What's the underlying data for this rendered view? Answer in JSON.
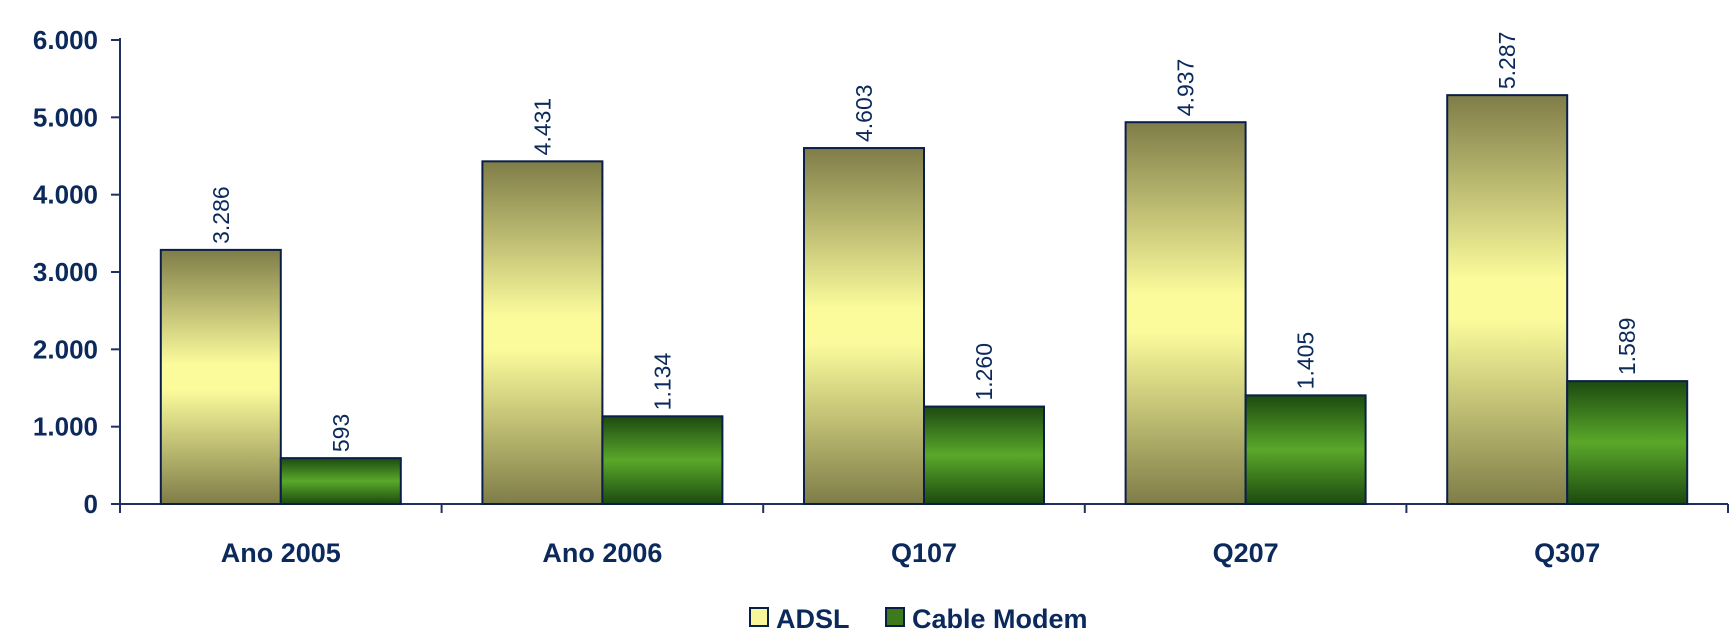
{
  "chart_data": {
    "type": "bar",
    "categories": [
      "Ano 2005",
      "Ano 2006",
      "Q107",
      "Q207",
      "Q307"
    ],
    "series": [
      {
        "name": "ADSL",
        "values": [
          3286,
          4431,
          4603,
          4937,
          5287
        ],
        "labels": [
          "3.286",
          "4.431",
          "4.603",
          "4.937",
          "5.287"
        ],
        "color": "#f7f79a"
      },
      {
        "name": "Cable Modem",
        "values": [
          593,
          1134,
          1260,
          1405,
          1589
        ],
        "labels": [
          "593",
          "1.134",
          "1.260",
          "1.405",
          "1.589"
        ],
        "color": "#5aa02a"
      }
    ],
    "ylim": [
      0,
      6000
    ],
    "yticks": [
      0,
      1000,
      2000,
      3000,
      4000,
      5000,
      6000
    ],
    "ytick_labels": [
      "0",
      "1.000",
      "2.000",
      "3.000",
      "4.000",
      "5.000",
      "6.000"
    ],
    "grid": false,
    "legend_position": "bottom-center",
    "title": "",
    "xlabel": "",
    "ylabel": ""
  }
}
